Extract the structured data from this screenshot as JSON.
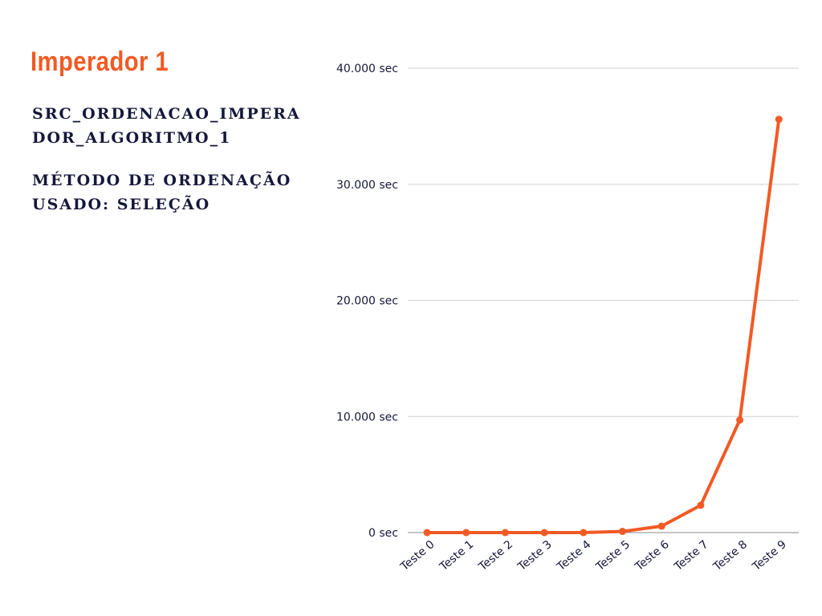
{
  "header": {
    "title": "Imperador 1",
    "source_name": "SRC_ORDENACAO_IMPERADOR_ALGORITMO_1",
    "method_label": "MÉTODO DE ORDENAÇÃO USADO: SELEÇÃO"
  },
  "colors": {
    "accent": "#F15A24",
    "text": "#15173A",
    "grid": "#d0d0d0"
  },
  "chart_data": {
    "type": "line",
    "categories": [
      "Teste 0",
      "Teste 1",
      "Teste 2",
      "Teste 3",
      "Teste 4",
      "Teste 5",
      "Teste 6",
      "Teste 7",
      "Teste 8",
      "Teste 9"
    ],
    "series": [
      {
        "values": [
          0,
          0,
          0,
          0,
          0,
          100,
          550,
          2350,
          9700,
          35600
        ]
      }
    ],
    "ylim": [
      0,
      40000
    ],
    "yticks": [
      0,
      10000,
      20000,
      30000,
      40000
    ],
    "ytick_labels": [
      "0 sec",
      "10.000 sec",
      "20.000 sec",
      "30.000 sec",
      "40.000 sec"
    ],
    "grid": true,
    "legend": "none"
  }
}
